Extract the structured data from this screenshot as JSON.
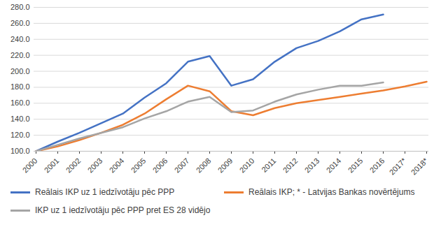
{
  "chart_data": {
    "type": "line",
    "categories": [
      "2000",
      "2001",
      "2002",
      "2003",
      "2004",
      "2005",
      "2006",
      "2007",
      "2008",
      "2009",
      "2010",
      "2011",
      "2012",
      "2013",
      "2014",
      "2015",
      "2016",
      "2017*",
      "2018*"
    ],
    "series": [
      {
        "name": "Reālais IKP uz 1 iedzīvotāju pēc PPP",
        "color": "#4472c4",
        "values": [
          100,
          112,
          123,
          135,
          147,
          167,
          185,
          212,
          219,
          182,
          190,
          212,
          229,
          238,
          250,
          265,
          271,
          null,
          null
        ]
      },
      {
        "name": "Reālais IKP; * - Latvijas Bankas novērtējums",
        "color": "#ed7d31",
        "values": [
          100,
          106,
          114,
          123,
          133,
          147,
          165,
          182,
          175,
          150,
          145,
          154,
          160,
          164,
          168,
          172,
          176,
          181,
          187
        ]
      },
      {
        "name": "IKP uz 1 iedzīvotāju pēc PPP pret ES 28 vidējo",
        "color": "#a5a5a5",
        "values": [
          100,
          108,
          116,
          123,
          130,
          141,
          150,
          162,
          168,
          149,
          151,
          162,
          171,
          177,
          182,
          182,
          186,
          null,
          null
        ]
      }
    ],
    "ylim": [
      100,
      280
    ],
    "yticks": [
      {
        "value": 100,
        "label": "100.0"
      },
      {
        "value": 120,
        "label": "120.0"
      },
      {
        "value": 140,
        "label": "140.0"
      },
      {
        "value": 160,
        "label": "160.0"
      },
      {
        "value": 180,
        "label": "180.0"
      },
      {
        "value": 200,
        "label": "200.0"
      },
      {
        "value": 220,
        "label": "220.0"
      },
      {
        "value": 240,
        "label": "240.0"
      },
      {
        "value": 260,
        "label": "260.0"
      },
      {
        "value": 280,
        "label": "280.0"
      }
    ],
    "grid": true,
    "legend": "bottom"
  }
}
